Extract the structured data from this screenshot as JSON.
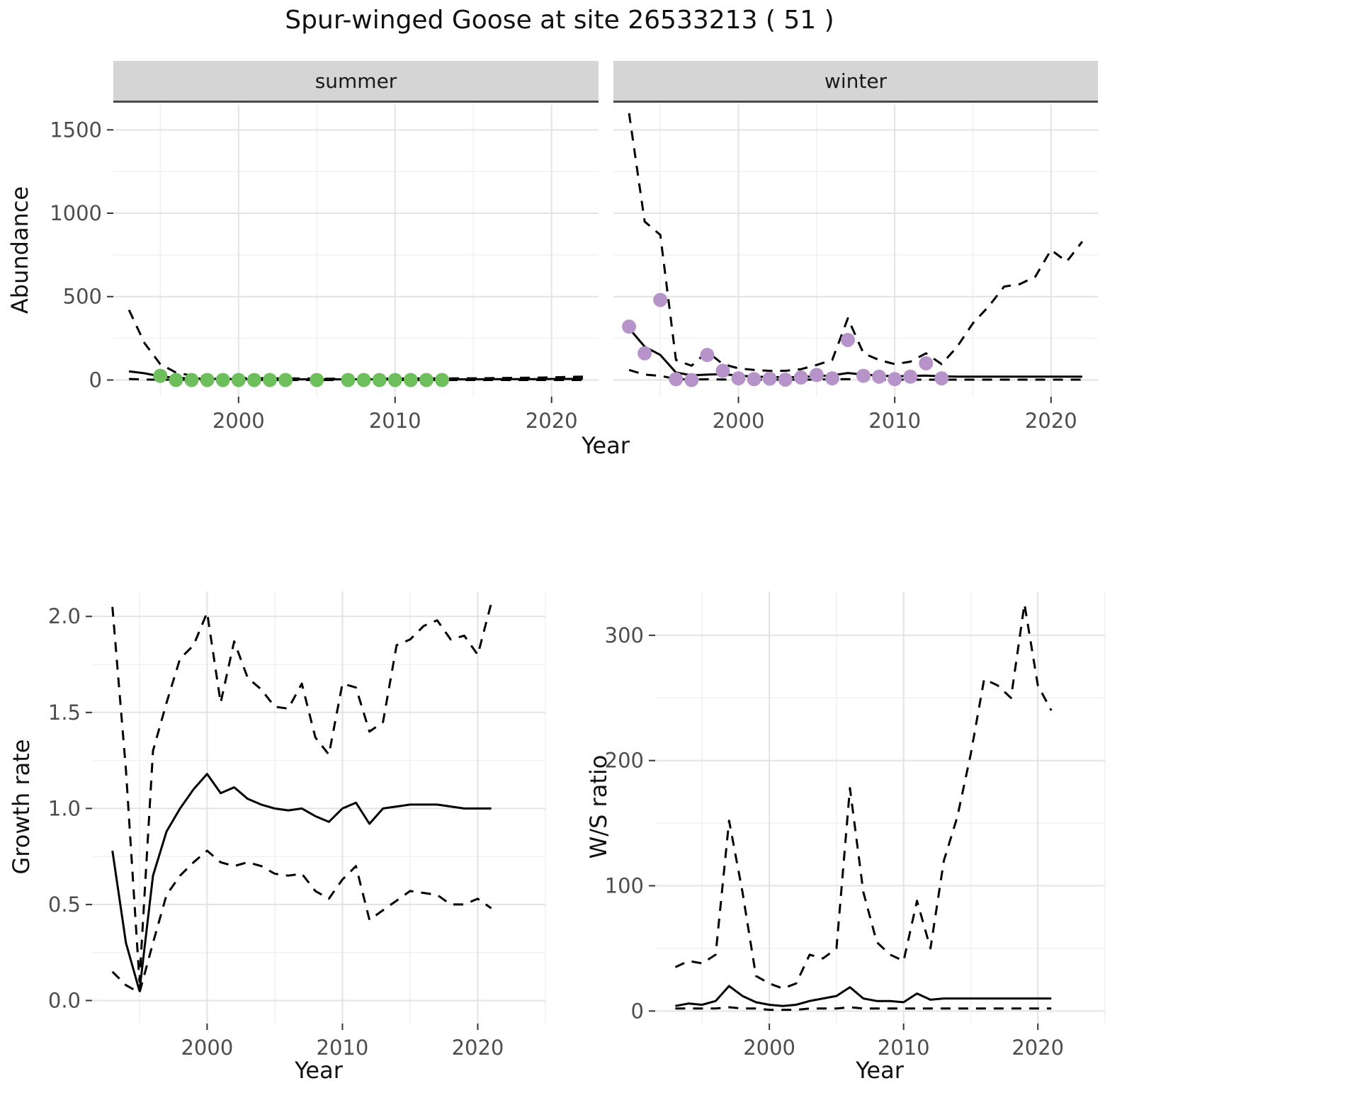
{
  "title": "Spur-winged Goose at site 26533213 ( 51 )",
  "facets": [
    "summer",
    "winter"
  ],
  "axis_labels": {
    "year": "Year",
    "abundance": "Abundance",
    "growth_rate": "Growth rate",
    "ws_ratio": "W/S ratio"
  },
  "colors": {
    "line": "#000000",
    "summer_points": "#6cbf5a",
    "winter_points": "#b694c9",
    "grid_major": "#e3e3e3",
    "grid_minor": "#f0f0f0",
    "tick": "#333333",
    "tick_text": "#4d4d4d"
  },
  "chart_data": [
    {
      "name": "abundance-summer",
      "type": "line",
      "facet": "summer",
      "xlabel": "Year",
      "ylabel": "Abundance",
      "xlim": [
        1992,
        2023
      ],
      "ylim": [
        -100,
        1650
      ],
      "xticks": [
        2000,
        2010,
        2020
      ],
      "xtick_labels": [
        "2000",
        "2010",
        "2020"
      ],
      "yticks": [
        0,
        500,
        1000,
        1500
      ],
      "ytick_labels": [
        "0",
        "500",
        "1000",
        "1500"
      ],
      "x": [
        1993,
        1994,
        1995,
        1996,
        1997,
        1998,
        1999,
        2000,
        2001,
        2002,
        2003,
        2004,
        2005,
        2006,
        2007,
        2008,
        2009,
        2010,
        2011,
        2012,
        2013,
        2014,
        2015,
        2016,
        2017,
        2018,
        2019,
        2020,
        2021,
        2022
      ],
      "series": [
        {
          "name": "upper_ci",
          "style": "dashed",
          "color": "#000000",
          "values": [
            420,
            220,
            95,
            45,
            26,
            18,
            14,
            12,
            11,
            10,
            9,
            9,
            8,
            8,
            8,
            8,
            8,
            8,
            9,
            9,
            9,
            10,
            10,
            11,
            12,
            13,
            14,
            16,
            18,
            20
          ]
        },
        {
          "name": "lower_ci",
          "style": "dashed",
          "color": "#000000",
          "values": [
            6,
            3,
            2,
            1,
            1,
            0,
            0,
            0,
            0,
            0,
            0,
            0,
            0,
            0,
            0,
            0,
            0,
            0,
            0,
            0,
            0,
            0,
            0,
            0,
            0,
            0,
            0,
            0,
            0,
            0
          ]
        },
        {
          "name": "model_fit",
          "style": "solid",
          "color": "#000000",
          "values": [
            52,
            40,
            22,
            13,
            9,
            7,
            6,
            5,
            5,
            5,
            4,
            4,
            4,
            4,
            4,
            4,
            4,
            4,
            4,
            4,
            4,
            4,
            4,
            5,
            5,
            5,
            5,
            6,
            6,
            7
          ]
        },
        {
          "name": "observed_counts",
          "style": "points",
          "color": "#6cbf5a",
          "points": [
            [
              1995,
              25
            ],
            [
              1996,
              0
            ],
            [
              1997,
              0
            ],
            [
              1998,
              0
            ],
            [
              1999,
              0
            ],
            [
              2000,
              0
            ],
            [
              2001,
              0
            ],
            [
              2002,
              0
            ],
            [
              2003,
              0
            ],
            [
              2005,
              0
            ],
            [
              2007,
              0
            ],
            [
              2008,
              0
            ],
            [
              2009,
              0
            ],
            [
              2010,
              0
            ],
            [
              2011,
              0
            ],
            [
              2012,
              0
            ],
            [
              2013,
              0
            ]
          ]
        }
      ]
    },
    {
      "name": "abundance-winter",
      "type": "line",
      "facet": "winter",
      "xlabel": "Year",
      "ylabel": "Abundance",
      "xlim": [
        1992,
        2023
      ],
      "ylim": [
        -100,
        1650
      ],
      "xticks": [
        2000,
        2010,
        2020
      ],
      "xtick_labels": [
        "2000",
        "2010",
        "2020"
      ],
      "yticks": [
        0,
        500,
        1000,
        1500
      ],
      "ytick_labels": [
        "0",
        "500",
        "1000",
        "1500"
      ],
      "x": [
        1993,
        1994,
        1995,
        1996,
        1997,
        1998,
        1999,
        2000,
        2001,
        2002,
        2003,
        2004,
        2005,
        2006,
        2007,
        2008,
        2009,
        2010,
        2011,
        2012,
        2013,
        2014,
        2015,
        2016,
        2017,
        2018,
        2019,
        2020,
        2021,
        2022
      ],
      "series": [
        {
          "name": "upper_ci",
          "style": "dashed",
          "color": "#000000",
          "values": [
            1600,
            950,
            870,
            120,
            85,
            170,
            95,
            70,
            60,
            55,
            55,
            65,
            90,
            120,
            370,
            160,
            120,
            95,
            110,
            160,
            95,
            200,
            340,
            440,
            560,
            575,
            620,
            780,
            710,
            830
          ]
        },
        {
          "name": "lower_ci",
          "style": "dashed",
          "color": "#000000",
          "values": [
            60,
            32,
            25,
            6,
            3,
            4,
            3,
            2,
            2,
            2,
            2,
            2,
            3,
            4,
            5,
            4,
            3,
            2,
            2,
            2,
            2,
            2,
            2,
            2,
            2,
            2,
            2,
            2,
            2,
            2
          ]
        },
        {
          "name": "model_fit",
          "style": "solid",
          "color": "#000000",
          "values": [
            310,
            200,
            150,
            45,
            28,
            32,
            35,
            26,
            20,
            18,
            16,
            18,
            22,
            28,
            42,
            32,
            26,
            22,
            24,
            26,
            22,
            20,
            20,
            20,
            20,
            20,
            20,
            20,
            20,
            20
          ]
        },
        {
          "name": "observed_counts",
          "style": "points",
          "color": "#b694c9",
          "points": [
            [
              1993,
              320
            ],
            [
              1994,
              160
            ],
            [
              1995,
              480
            ],
            [
              1996,
              5
            ],
            [
              1997,
              0
            ],
            [
              1998,
              150
            ],
            [
              1999,
              55
            ],
            [
              2000,
              10
            ],
            [
              2001,
              5
            ],
            [
              2002,
              8
            ],
            [
              2003,
              2
            ],
            [
              2004,
              15
            ],
            [
              2005,
              30
            ],
            [
              2006,
              10
            ],
            [
              2007,
              240
            ],
            [
              2008,
              25
            ],
            [
              2009,
              20
            ],
            [
              2010,
              5
            ],
            [
              2011,
              20
            ],
            [
              2012,
              100
            ],
            [
              2013,
              10
            ]
          ]
        }
      ]
    },
    {
      "name": "growth-rate",
      "type": "line",
      "xlabel": "Year",
      "ylabel": "Growth rate",
      "xlim": [
        1991.5,
        2025
      ],
      "ylim": [
        -0.12,
        2.13
      ],
      "xticks": [
        2000,
        2010,
        2020
      ],
      "xtick_labels": [
        "2000",
        "2010",
        "2020"
      ],
      "yticks": [
        0,
        0.5,
        1,
        1.5,
        2
      ],
      "ytick_labels": [
        "0.0",
        "0.5",
        "1.0",
        "1.5",
        "2.0"
      ],
      "x": [
        1993,
        1994,
        1995,
        1996,
        1997,
        1998,
        1999,
        2000,
        2001,
        2002,
        2003,
        2004,
        2005,
        2006,
        2007,
        2008,
        2009,
        2010,
        2011,
        2012,
        2013,
        2014,
        2015,
        2016,
        2017,
        2018,
        2019,
        2020,
        2021
      ],
      "series": [
        {
          "name": "upper_ci",
          "style": "dashed",
          "color": "#000000",
          "values": [
            2.05,
            1.2,
            0.1,
            1.3,
            1.55,
            1.78,
            1.85,
            2.02,
            1.55,
            1.87,
            1.68,
            1.62,
            1.53,
            1.52,
            1.65,
            1.37,
            1.28,
            1.65,
            1.63,
            1.4,
            1.45,
            1.85,
            1.88,
            1.95,
            1.98,
            1.88,
            1.9,
            1.8,
            2.07
          ]
        },
        {
          "name": "lower_ci",
          "style": "dashed",
          "color": "#000000",
          "values": [
            0.15,
            0.08,
            0.04,
            0.3,
            0.55,
            0.65,
            0.72,
            0.78,
            0.72,
            0.7,
            0.72,
            0.7,
            0.66,
            0.65,
            0.66,
            0.57,
            0.53,
            0.63,
            0.7,
            0.42,
            0.47,
            0.52,
            0.57,
            0.56,
            0.55,
            0.5,
            0.5,
            0.53,
            0.48
          ]
        },
        {
          "name": "model_fit",
          "style": "solid",
          "color": "#000000",
          "values": [
            0.78,
            0.3,
            0.05,
            0.65,
            0.88,
            1.0,
            1.1,
            1.18,
            1.08,
            1.11,
            1.05,
            1.02,
            1.0,
            0.99,
            1.0,
            0.96,
            0.93,
            1.0,
            1.03,
            0.92,
            1.0,
            1.01,
            1.02,
            1.02,
            1.02,
            1.01,
            1.0,
            1.0,
            1.0
          ]
        }
      ]
    },
    {
      "name": "ws-ratio",
      "type": "line",
      "xlabel": "Year",
      "ylabel": "W/S ratio",
      "xlim": [
        1991.5,
        2025
      ],
      "ylim": [
        -10,
        335
      ],
      "xticks": [
        2000,
        2010,
        2020
      ],
      "xtick_labels": [
        "2000",
        "2010",
        "2020"
      ],
      "yticks": [
        0,
        100,
        200,
        300
      ],
      "ytick_labels": [
        "0",
        "100",
        "200",
        "300"
      ],
      "x": [
        1993,
        1994,
        1995,
        1996,
        1997,
        1998,
        1999,
        2000,
        2001,
        2002,
        2003,
        2004,
        2005,
        2006,
        2007,
        2008,
        2009,
        2010,
        2011,
        2012,
        2013,
        2014,
        2015,
        2016,
        2017,
        2018,
        2019,
        2020,
        2021
      ],
      "series": [
        {
          "name": "upper_ci",
          "style": "dashed",
          "color": "#000000",
          "values": [
            35,
            40,
            38,
            45,
            152,
            95,
            28,
            22,
            18,
            22,
            45,
            42,
            50,
            178,
            95,
            55,
            45,
            40,
            88,
            50,
            120,
            155,
            205,
            265,
            260,
            250,
            325,
            260,
            240
          ]
        },
        {
          "name": "lower_ci",
          "style": "dashed",
          "color": "#000000",
          "values": [
            2,
            2,
            2,
            2,
            3,
            2,
            2,
            1,
            1,
            1,
            2,
            2,
            2,
            3,
            2,
            2,
            2,
            2,
            2,
            2,
            2,
            2,
            2,
            2,
            2,
            2,
            2,
            2,
            2
          ]
        },
        {
          "name": "model_fit",
          "style": "solid",
          "color": "#000000",
          "values": [
            4,
            6,
            5,
            8,
            20,
            12,
            7,
            5,
            4,
            5,
            8,
            10,
            12,
            19,
            10,
            8,
            8,
            7,
            14,
            9,
            10,
            10,
            10,
            10,
            10,
            10,
            10,
            10,
            10
          ]
        }
      ]
    }
  ]
}
